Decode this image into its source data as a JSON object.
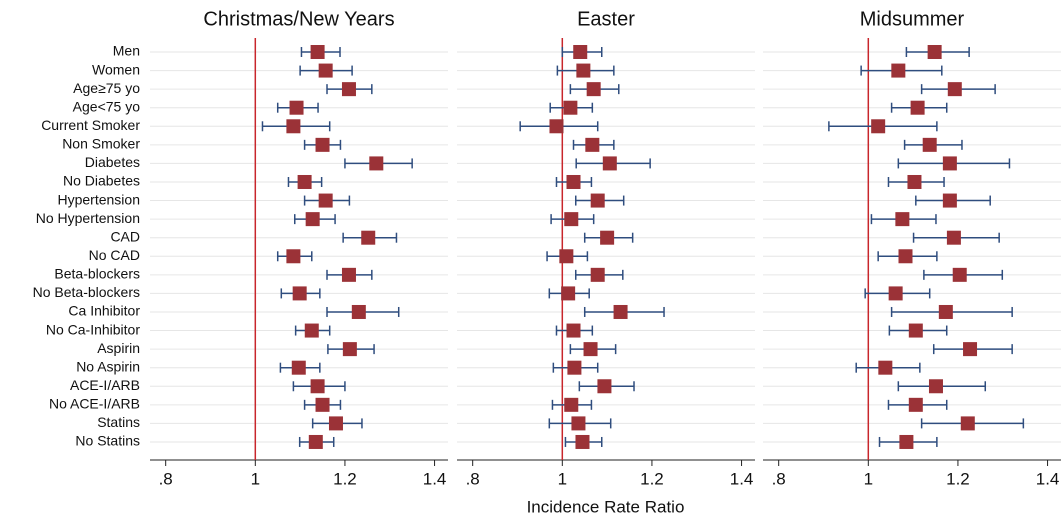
{
  "chart_data": [
    {
      "type": "forest",
      "title": "Christmas/New Years",
      "categories": [
        "Men",
        "Women",
        "Age≥75 yo",
        "Age<75 yo",
        "Current Smoker",
        "Non Smoker",
        "Diabetes",
        "No Diabetes",
        "Hypertension",
        "No Hypertension",
        "CAD",
        "No CAD",
        "Beta-blockers",
        "No Beta-blockers",
        "Ca Inhibitor",
        "No Ca-Inhibitor",
        "Aspirin",
        "No Aspirin",
        "ACE-I/ARB",
        "No ACE-I/ARB",
        "Statins",
        "No Statins"
      ],
      "values": [
        1.139,
        1.157,
        1.209,
        1.092,
        1.085,
        1.15,
        1.27,
        1.11,
        1.157,
        1.128,
        1.252,
        1.085,
        1.209,
        1.099,
        1.231,
        1.126,
        1.211,
        1.097,
        1.139,
        1.15,
        1.18,
        1.135
      ],
      "lower": [
        1.103,
        1.1,
        1.16,
        1.05,
        1.016,
        1.11,
        1.2,
        1.074,
        1.11,
        1.088,
        1.196,
        1.05,
        1.16,
        1.058,
        1.16,
        1.09,
        1.162,
        1.056,
        1.085,
        1.11,
        1.128,
        1.099
      ],
      "upper": [
        1.189,
        1.216,
        1.26,
        1.14,
        1.166,
        1.19,
        1.35,
        1.148,
        1.21,
        1.178,
        1.315,
        1.126,
        1.26,
        1.144,
        1.32,
        1.166,
        1.265,
        1.144,
        1.2,
        1.19,
        1.238,
        1.175
      ],
      "refline": 1,
      "color": "#9b3237",
      "ci_color": "#2f4d7e",
      "refline_color": "#c8262b",
      "xlim": [
        0.765,
        1.43
      ],
      "xticks": [
        {
          "value": 0.8,
          "label": ".8"
        },
        1,
        1.2,
        1.4
      ],
      "grid": true
    },
    {
      "type": "forest",
      "title": "Easter",
      "xlabel": "Incidence Rate Ratio",
      "values": [
        1.04,
        1.047,
        1.07,
        1.018,
        0.987,
        1.067,
        1.106,
        1.025,
        1.079,
        1.02,
        1.1,
        1.009,
        1.079,
        1.013,
        1.13,
        1.025,
        1.063,
        1.027,
        1.094,
        1.02,
        1.036,
        1.045
      ],
      "lower": [
        1.0,
        0.989,
        1.018,
        0.973,
        0.906,
        1.025,
        1.031,
        0.987,
        1.03,
        0.975,
        1.05,
        0.966,
        1.03,
        0.971,
        1.05,
        0.987,
        1.018,
        0.98,
        1.038,
        0.978,
        0.971,
        1.007
      ],
      "upper": [
        1.088,
        1.115,
        1.126,
        1.067,
        1.079,
        1.115,
        1.196,
        1.065,
        1.137,
        1.07,
        1.157,
        1.056,
        1.135,
        1.06,
        1.227,
        1.067,
        1.119,
        1.079,
        1.16,
        1.065,
        1.108,
        1.088
      ],
      "refline": 1,
      "color": "#9b3237",
      "ci_color": "#2f4d7e",
      "refline_color": "#c8262b",
      "xlim": [
        0.765,
        1.43
      ],
      "xticks": [
        {
          "value": 0.8,
          "label": ".8"
        },
        1,
        1.2,
        1.4
      ],
      "grid": true
    },
    {
      "type": "forest",
      "title": "Midsummer",
      "values": [
        1.148,
        1.067,
        1.193,
        1.11,
        1.022,
        1.137,
        1.182,
        1.103,
        1.182,
        1.076,
        1.191,
        1.083,
        1.204,
        1.061,
        1.173,
        1.106,
        1.227,
        1.038,
        1.151,
        1.106,
        1.222,
        1.085
      ],
      "lower": [
        1.085,
        0.984,
        1.119,
        1.052,
        0.912,
        1.081,
        1.067,
        1.045,
        1.106,
        1.007,
        1.101,
        1.022,
        1.124,
        0.993,
        1.052,
        1.047,
        1.146,
        0.973,
        1.067,
        1.045,
        1.119,
        1.025
      ],
      "upper": [
        1.225,
        1.164,
        1.283,
        1.175,
        1.153,
        1.209,
        1.315,
        1.169,
        1.272,
        1.151,
        1.292,
        1.153,
        1.299,
        1.137,
        1.321,
        1.175,
        1.321,
        1.115,
        1.261,
        1.175,
        1.346,
        1.153
      ],
      "refline": 1,
      "color": "#9b3237",
      "ci_color": "#2f4d7e",
      "refline_color": "#c8262b",
      "xlim": [
        0.765,
        1.43
      ],
      "xticks": [
        {
          "value": 0.8,
          "label": ".8"
        },
        1,
        1.2,
        1.4
      ],
      "grid": true
    }
  ]
}
